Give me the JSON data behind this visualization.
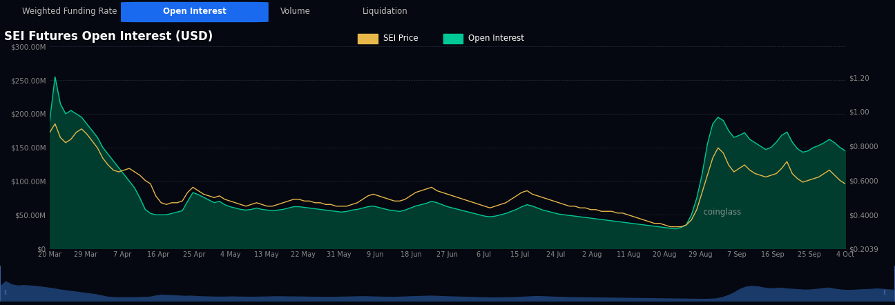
{
  "title": "SEI Futures Open Interest (USD)",
  "bg_color": "#050810",
  "grid_color": "#252d3d",
  "open_interest_color": "#00c896",
  "open_interest_fill": "#003d2e",
  "sei_price_color": "#e8b84b",
  "navigator_color": "#1a3a6a",
  "navigator_bg": "#08101e",
  "active_tab_color": "#1a6af0",
  "tab_labels": [
    "Weighted Funding Rate",
    "Open Interest",
    "Volume",
    "Liquidation"
  ],
  "active_tab": "Open Interest",
  "legend_sei_color": "#e8b84b",
  "legend_oi_color": "#00c896",
  "left_ylim": [
    0,
    300000000
  ],
  "left_yticks": [
    0,
    50000000,
    100000000,
    150000000,
    200000000,
    250000000,
    300000000
  ],
  "left_yticklabels": [
    "$0",
    "$50.00M",
    "$100.00M",
    "$150.00M",
    "$200.00M",
    "$250.00M",
    "$300.00M"
  ],
  "right_ylim": [
    0.2039,
    1.38
  ],
  "right_yticks": [
    0.2039,
    0.4,
    0.6,
    0.8,
    1.0,
    1.2
  ],
  "right_yticklabels": [
    "$0.2039",
    "$0.4000",
    "$0.6000",
    "$0.8000",
    "$1.00",
    "$1.20"
  ],
  "xtick_labels": [
    "20 Mar",
    "29 Mar",
    "7 Apr",
    "16 Apr",
    "25 Apr",
    "4 May",
    "13 May",
    "22 May",
    "31 May",
    "9 Jun",
    "18 Jun",
    "27 Jun",
    "6 Jul",
    "15 Jul",
    "24 Jul",
    "2 Aug",
    "11 Aug",
    "20 Aug",
    "29 Aug",
    "7 Sep",
    "16 Sep",
    "25 Sep",
    "4 Oct"
  ],
  "open_interest_values": [
    190000000,
    255000000,
    215000000,
    200000000,
    205000000,
    200000000,
    195000000,
    185000000,
    175000000,
    165000000,
    150000000,
    140000000,
    130000000,
    120000000,
    110000000,
    100000000,
    90000000,
    75000000,
    58000000,
    52000000,
    50000000,
    50000000,
    50000000,
    52000000,
    54000000,
    56000000,
    70000000,
    83000000,
    80000000,
    76000000,
    72000000,
    68000000,
    70000000,
    65000000,
    62000000,
    60000000,
    58000000,
    57000000,
    58000000,
    60000000,
    58000000,
    57000000,
    56000000,
    57000000,
    58000000,
    60000000,
    62000000,
    62000000,
    61000000,
    60000000,
    59000000,
    58000000,
    57000000,
    56000000,
    55000000,
    54000000,
    55000000,
    57000000,
    58000000,
    60000000,
    62000000,
    63000000,
    61000000,
    59000000,
    57000000,
    56000000,
    55000000,
    57000000,
    60000000,
    63000000,
    65000000,
    67000000,
    70000000,
    68000000,
    65000000,
    62000000,
    60000000,
    58000000,
    56000000,
    54000000,
    52000000,
    50000000,
    48000000,
    47000000,
    48000000,
    50000000,
    52000000,
    55000000,
    58000000,
    62000000,
    65000000,
    63000000,
    60000000,
    57000000,
    55000000,
    53000000,
    51000000,
    50000000,
    49000000,
    48000000,
    47000000,
    46000000,
    45000000,
    44000000,
    43000000,
    42000000,
    41000000,
    40000000,
    39000000,
    38000000,
    37000000,
    36000000,
    35000000,
    34000000,
    33000000,
    32000000,
    31000000,
    30000000,
    29000000,
    31000000,
    35000000,
    50000000,
    75000000,
    110000000,
    155000000,
    185000000,
    195000000,
    190000000,
    175000000,
    165000000,
    168000000,
    172000000,
    162000000,
    157000000,
    152000000,
    147000000,
    150000000,
    158000000,
    168000000,
    173000000,
    158000000,
    148000000,
    143000000,
    145000000,
    150000000,
    153000000,
    157000000,
    162000000,
    157000000,
    150000000,
    145000000
  ],
  "sei_price_values": [
    0.88,
    0.93,
    0.85,
    0.82,
    0.84,
    0.88,
    0.9,
    0.87,
    0.83,
    0.79,
    0.73,
    0.69,
    0.66,
    0.65,
    0.66,
    0.67,
    0.65,
    0.63,
    0.6,
    0.58,
    0.51,
    0.47,
    0.46,
    0.47,
    0.47,
    0.48,
    0.53,
    0.56,
    0.54,
    0.52,
    0.51,
    0.5,
    0.51,
    0.49,
    0.48,
    0.47,
    0.46,
    0.45,
    0.46,
    0.47,
    0.46,
    0.45,
    0.45,
    0.46,
    0.47,
    0.48,
    0.49,
    0.49,
    0.48,
    0.48,
    0.47,
    0.47,
    0.46,
    0.46,
    0.45,
    0.45,
    0.45,
    0.46,
    0.47,
    0.49,
    0.51,
    0.52,
    0.51,
    0.5,
    0.49,
    0.48,
    0.48,
    0.49,
    0.51,
    0.53,
    0.54,
    0.55,
    0.56,
    0.54,
    0.53,
    0.52,
    0.51,
    0.5,
    0.49,
    0.48,
    0.47,
    0.46,
    0.45,
    0.44,
    0.45,
    0.46,
    0.47,
    0.49,
    0.51,
    0.53,
    0.54,
    0.52,
    0.51,
    0.5,
    0.49,
    0.48,
    0.47,
    0.46,
    0.45,
    0.45,
    0.44,
    0.44,
    0.43,
    0.43,
    0.42,
    0.42,
    0.42,
    0.41,
    0.41,
    0.4,
    0.39,
    0.38,
    0.37,
    0.36,
    0.35,
    0.35,
    0.34,
    0.33,
    0.33,
    0.33,
    0.34,
    0.37,
    0.43,
    0.53,
    0.63,
    0.73,
    0.79,
    0.76,
    0.69,
    0.65,
    0.67,
    0.69,
    0.66,
    0.64,
    0.63,
    0.62,
    0.63,
    0.64,
    0.67,
    0.71,
    0.64,
    0.61,
    0.59,
    0.6,
    0.61,
    0.62,
    0.64,
    0.66,
    0.63,
    0.6,
    0.58
  ]
}
